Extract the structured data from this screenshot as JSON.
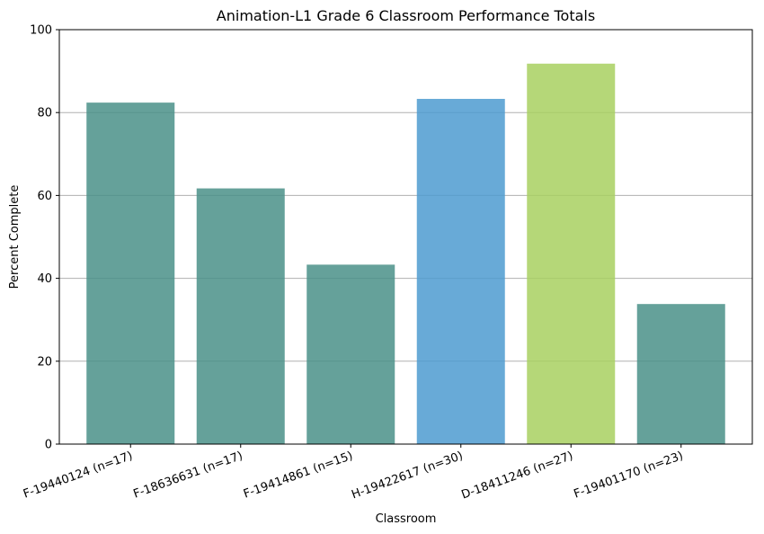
{
  "chart_data": {
    "type": "bar",
    "title": "Animation-L1 Grade 6 Classroom Performance Totals",
    "xlabel": "Classroom",
    "ylabel": "Percent Complete",
    "ylim": [
      0,
      100
    ],
    "yticks": [
      0,
      20,
      40,
      60,
      80,
      100
    ],
    "grid": "horizontal",
    "categories": [
      "F-19440124 (n=17)",
      "F-18636631 (n=17)",
      "F-19414861 (n=15)",
      "H-19422617 (n=30)",
      "D-18411246 (n=27)",
      "F-19401170 (n=23)"
    ],
    "values": [
      82.4,
      61.7,
      43.3,
      83.3,
      91.8,
      33.8
    ],
    "colors": [
      "#4a9088",
      "#4a9088",
      "#4a9088",
      "#4e9bd0",
      "#a8d060",
      "#4a9088"
    ],
    "bar_opacity": 0.85
  }
}
